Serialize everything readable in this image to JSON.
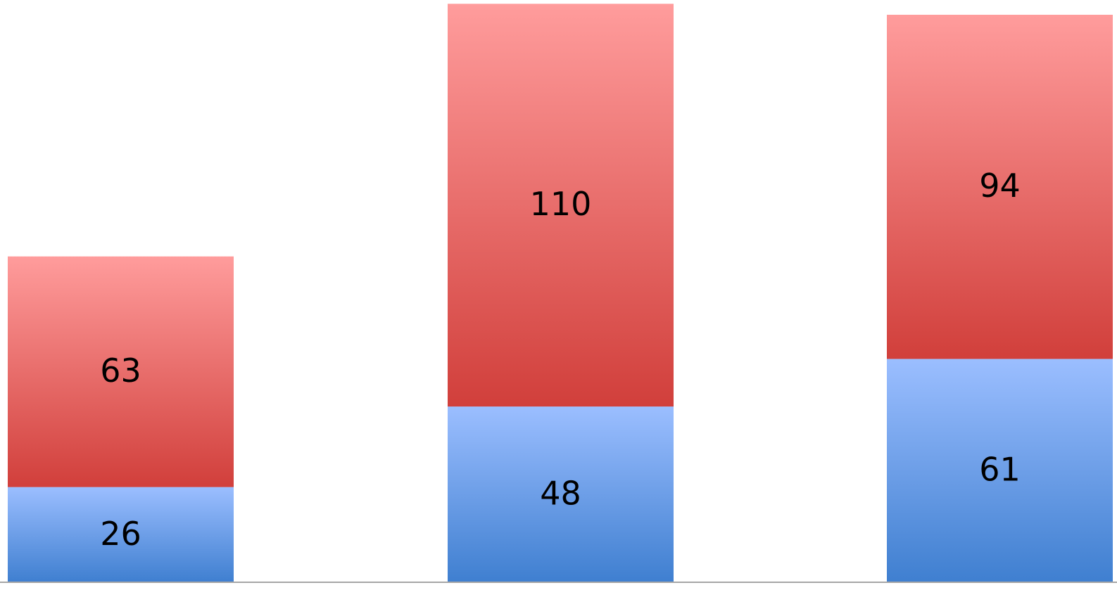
{
  "chart_data": {
    "type": "bar",
    "stacked": true,
    "categories": [
      "",
      "",
      ""
    ],
    "series": [
      {
        "color_top": "#9bbeff",
        "color_bottom": "#3f7fd0",
        "values": [
          26,
          48,
          61
        ]
      },
      {
        "color_top": "#ff9c9c",
        "color_bottom": "#d13f3b",
        "values": [
          63,
          110,
          94
        ]
      }
    ],
    "title": "",
    "xlabel": "",
    "ylabel": "",
    "ylim": [
      0,
      157.5
    ],
    "grid": false,
    "legend": "none",
    "data_labels": true,
    "axis_line_color": "#a6a6a6"
  }
}
